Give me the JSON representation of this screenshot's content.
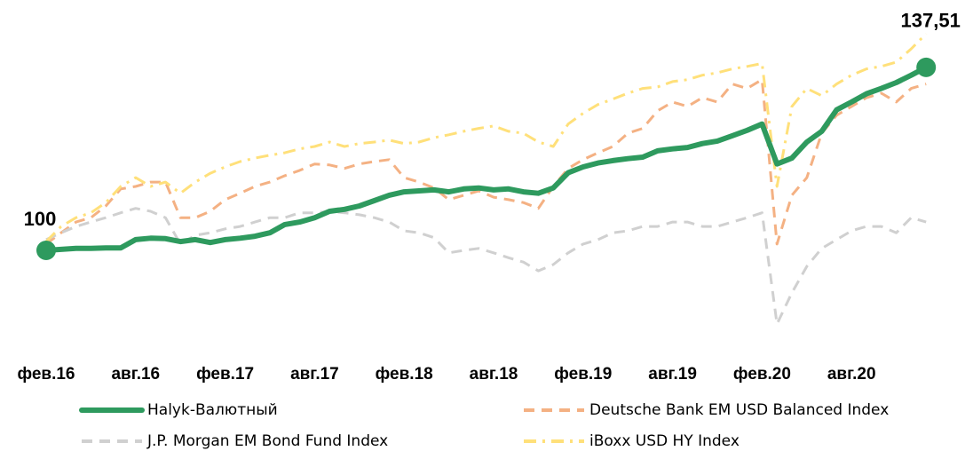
{
  "chart_data": {
    "type": "line",
    "categories": [
      "фев.16",
      null,
      null,
      null,
      null,
      null,
      "авг.16",
      null,
      null,
      null,
      null,
      null,
      "фев.17",
      null,
      null,
      null,
      null,
      null,
      "авг.17",
      null,
      null,
      null,
      null,
      null,
      "фев.18",
      null,
      null,
      null,
      null,
      null,
      "авг.18",
      null,
      null,
      null,
      null,
      null,
      "фев.19",
      null,
      null,
      null,
      null,
      null,
      "авг.19",
      null,
      null,
      null,
      null,
      null,
      "фев.20",
      null,
      null,
      null,
      null,
      null,
      "авг.20",
      null,
      null,
      null,
      null,
      null
    ],
    "series": [
      {
        "name": "Halyk-Валютный",
        "color": "#2e9a5e",
        "style": "solid",
        "markers": "ends",
        "values": [
          100,
          100.2,
          100.4,
          100.4,
          100.5,
          100.5,
          102.2,
          102.5,
          102.4,
          101.8,
          102.2,
          101.6,
          102.2,
          102.5,
          102.9,
          103.6,
          105.3,
          105.8,
          106.7,
          108,
          108.4,
          109.1,
          110.2,
          111.3,
          112,
          112.2,
          112.4,
          112,
          112.6,
          112.8,
          112.4,
          112.6,
          112,
          111.7,
          112.8,
          115.9,
          117.1,
          117.9,
          118.4,
          118.8,
          119.1,
          120.4,
          120.8,
          121.1,
          121.9,
          122.4,
          123.5,
          124.6,
          125.9,
          117.7,
          118.9,
          122.2,
          124.4,
          128.8,
          130.4,
          132.1,
          133.2,
          134.4,
          135.9,
          137.51
        ],
        "value_labels": [
          "100",
          null,
          null,
          null,
          null,
          null,
          null,
          null,
          null,
          null,
          null,
          null,
          null,
          null,
          null,
          null,
          null,
          null,
          null,
          null,
          null,
          null,
          null,
          null,
          null,
          null,
          null,
          null,
          null,
          null,
          null,
          null,
          null,
          null,
          null,
          null,
          null,
          null,
          null,
          null,
          null,
          null,
          null,
          null,
          null,
          null,
          null,
          null,
          null,
          null,
          null,
          null,
          null,
          null,
          null,
          null,
          null,
          null,
          null,
          "137,51"
        ]
      },
      {
        "name": "Deutsche Bank EM USD Balanced Index",
        "color": "#f4b183",
        "style": "dashed",
        "values": [
          101.3,
          103.6,
          105.8,
          106.7,
          109.1,
          112.6,
          113.1,
          114,
          114,
          106.7,
          106.7,
          108,
          110.4,
          111.7,
          113.1,
          114,
          115.3,
          116.4,
          117.7,
          117.5,
          116.8,
          117.7,
          118.2,
          118.6,
          114.9,
          114,
          112.8,
          110.4,
          111.3,
          112.2,
          110.9,
          110.4,
          109.8,
          108.6,
          113.1,
          116.8,
          118.6,
          120,
          121.3,
          124,
          125,
          128.6,
          130.4,
          129.5,
          131.3,
          130.4,
          134.1,
          133.2,
          135,
          101.3,
          111.3,
          114.9,
          124,
          127.7,
          129.5,
          131.3,
          132.2,
          130.4,
          133.2,
          134.1
        ]
      },
      {
        "name": "J.P. Morgan EM Bond Fund Index",
        "color": "#d0d0d0",
        "style": "dashed",
        "values": [
          102.2,
          103.6,
          104.9,
          105.8,
          106.7,
          107.7,
          108.6,
          108,
          106.7,
          101.3,
          103.1,
          103.6,
          104.4,
          104.9,
          105.8,
          106.7,
          106.7,
          107.7,
          107.7,
          108,
          107.7,
          107.3,
          106.7,
          105.8,
          104,
          103.6,
          102.6,
          99.5,
          100,
          100.4,
          99.5,
          98.5,
          97.6,
          95.8,
          97.1,
          99.5,
          101.3,
          102.2,
          103.6,
          104,
          104.9,
          104.9,
          105.8,
          105.8,
          104.9,
          104.9,
          105.8,
          106.7,
          107.7,
          84.9,
          91.3,
          96.7,
          100.4,
          102.2,
          104,
          104.9,
          104.9,
          103.6,
          106.7,
          105.8
        ]
      },
      {
        "name": "iBoxx USD HY Index",
        "color": "#ffe07a",
        "style": "dashdot",
        "values": [
          101.8,
          104.9,
          106.7,
          107.7,
          109.8,
          113.1,
          114.9,
          113.1,
          114,
          111.7,
          114,
          115.8,
          117.1,
          118.2,
          118.9,
          119.5,
          120,
          120.8,
          121.3,
          122.2,
          121.3,
          121.9,
          122.2,
          122.6,
          121.9,
          122.2,
          123.1,
          123.7,
          124.4,
          125,
          125.5,
          124.4,
          124,
          122.2,
          121.3,
          125.9,
          128.1,
          129.9,
          131,
          132.2,
          133.2,
          133.5,
          134.6,
          135,
          135.9,
          136.4,
          137.2,
          137.7,
          138.3,
          113.1,
          129.5,
          133.2,
          131.7,
          134.1,
          135.9,
          137.2,
          137.7,
          138.6,
          141.3,
          144.4
        ]
      }
    ]
  }
}
